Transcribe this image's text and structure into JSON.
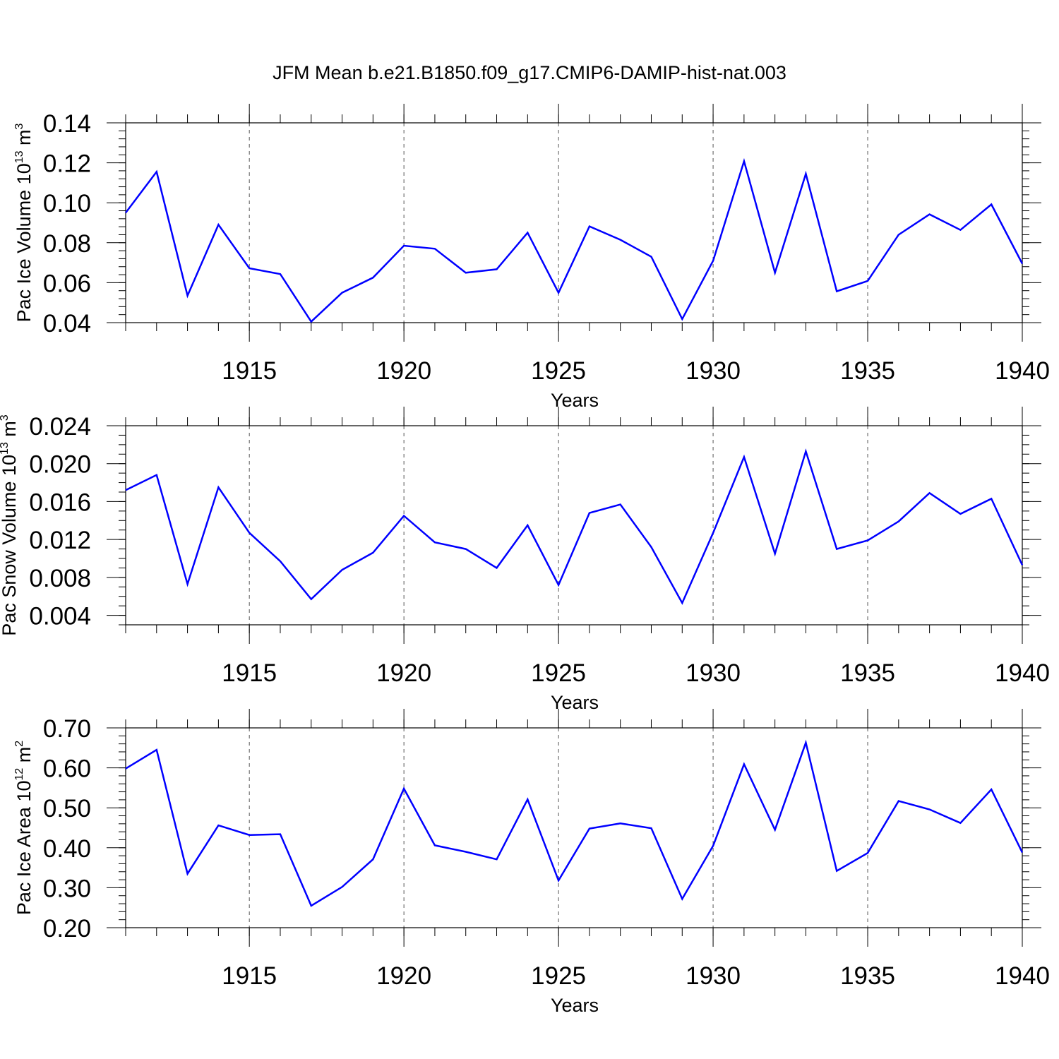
{
  "chart_data": {
    "title": "JFM Mean b.e21.B1850.f09_g17.CMIP6-DAMIP-hist-nat.003",
    "panels": [
      {
        "type": "line",
        "ylabel_prefix": "Pac Ice Volume 10",
        "ylabel_exp": "13",
        "ylabel_unit": " m",
        "ylabel_unit_exp": "3",
        "xlabel": "Years",
        "xlim": [
          1911,
          1940
        ],
        "ylim": [
          0.04,
          0.14
        ],
        "ymajor": [
          0.04,
          0.06,
          0.08,
          0.1,
          0.12,
          0.14
        ],
        "ymajor_labels": [
          "0.04",
          "0.06",
          "0.08",
          "0.10",
          "0.12",
          "0.14"
        ],
        "yminor_step": 0.004,
        "xmajor": [
          1915,
          1920,
          1925,
          1930,
          1935,
          1940
        ],
        "xmajor_labels": [
          "1915",
          "1920",
          "1925",
          "1930",
          "1935",
          "1940"
        ],
        "grid": "dashed vertical at major x ticks",
        "color": "#0000ff",
        "x": [
          1911,
          1912,
          1913,
          1914,
          1915,
          1916,
          1917,
          1918,
          1919,
          1920,
          1921,
          1922,
          1923,
          1924,
          1925,
          1926,
          1927,
          1928,
          1929,
          1930,
          1931,
          1932,
          1933,
          1934,
          1935,
          1936,
          1937,
          1938,
          1939,
          1940
        ],
        "values": [
          0.095,
          0.1155,
          0.0535,
          0.089,
          0.0672,
          0.0643,
          0.0405,
          0.055,
          0.0625,
          0.0785,
          0.077,
          0.065,
          0.0667,
          0.085,
          0.055,
          0.0882,
          0.0815,
          0.073,
          0.0418,
          0.071,
          0.1208,
          0.065,
          0.1145,
          0.0557,
          0.0609,
          0.084,
          0.0942,
          0.0864,
          0.0992,
          0.0695
        ]
      },
      {
        "type": "line",
        "ylabel_prefix": "Pac Snow Volume 10",
        "ylabel_exp": "13",
        "ylabel_unit": " m",
        "ylabel_unit_exp": "3",
        "xlabel": "Years",
        "xlim": [
          1911,
          1940
        ],
        "ylim": [
          0.003,
          0.024
        ],
        "ymajor": [
          0.004,
          0.008,
          0.012,
          0.016,
          0.02,
          0.024
        ],
        "ymajor_labels": [
          "0.004",
          "0.008",
          "0.012",
          "0.016",
          "0.020",
          "0.024"
        ],
        "yminor_step": 0.001,
        "xmajor": [
          1915,
          1920,
          1925,
          1930,
          1935,
          1940
        ],
        "xmajor_labels": [
          "1915",
          "1920",
          "1925",
          "1930",
          "1935",
          "1940"
        ],
        "grid": "dashed vertical at major x ticks",
        "color": "#0000ff",
        "x": [
          1911,
          1912,
          1913,
          1914,
          1915,
          1916,
          1917,
          1918,
          1919,
          1920,
          1921,
          1922,
          1923,
          1924,
          1925,
          1926,
          1927,
          1928,
          1929,
          1930,
          1931,
          1932,
          1933,
          1934,
          1935,
          1936,
          1937,
          1938,
          1939,
          1940
        ],
        "values": [
          0.0172,
          0.0188,
          0.0073,
          0.0175,
          0.0127,
          0.0097,
          0.0057,
          0.0088,
          0.0106,
          0.0145,
          0.0117,
          0.011,
          0.009,
          0.0135,
          0.0072,
          0.0148,
          0.0157,
          0.0112,
          0.0053,
          0.0127,
          0.0207,
          0.0105,
          0.0213,
          0.011,
          0.0119,
          0.0139,
          0.0169,
          0.0147,
          0.0163,
          0.0093
        ]
      },
      {
        "type": "line",
        "ylabel_prefix": "Pac Ice Area 10",
        "ylabel_exp": "12",
        "ylabel_unit": " m",
        "ylabel_unit_exp": "2",
        "xlabel": "Years",
        "xlim": [
          1911,
          1940
        ],
        "ylim": [
          0.2,
          0.7
        ],
        "ymajor": [
          0.2,
          0.3,
          0.4,
          0.5,
          0.6,
          0.7
        ],
        "ymajor_labels": [
          "0.20",
          "0.30",
          "0.40",
          "0.50",
          "0.60",
          "0.70"
        ],
        "yminor_step": 0.02,
        "xmajor": [
          1915,
          1920,
          1925,
          1930,
          1935,
          1940
        ],
        "xmajor_labels": [
          "1915",
          "1920",
          "1925",
          "1930",
          "1935",
          "1940"
        ],
        "grid": "dashed vertical at major x ticks",
        "color": "#0000ff",
        "x": [
          1911,
          1912,
          1913,
          1914,
          1915,
          1916,
          1917,
          1918,
          1919,
          1920,
          1921,
          1922,
          1923,
          1924,
          1925,
          1926,
          1927,
          1928,
          1929,
          1930,
          1931,
          1932,
          1933,
          1934,
          1935,
          1936,
          1937,
          1938,
          1939,
          1940
        ],
        "values": [
          0.598,
          0.645,
          0.335,
          0.456,
          0.432,
          0.434,
          0.255,
          0.302,
          0.371,
          0.548,
          0.406,
          0.39,
          0.371,
          0.521,
          0.318,
          0.448,
          0.461,
          0.449,
          0.272,
          0.405,
          0.609,
          0.445,
          0.663,
          0.342,
          0.387,
          0.517,
          0.496,
          0.462,
          0.546,
          0.388
        ]
      }
    ]
  }
}
